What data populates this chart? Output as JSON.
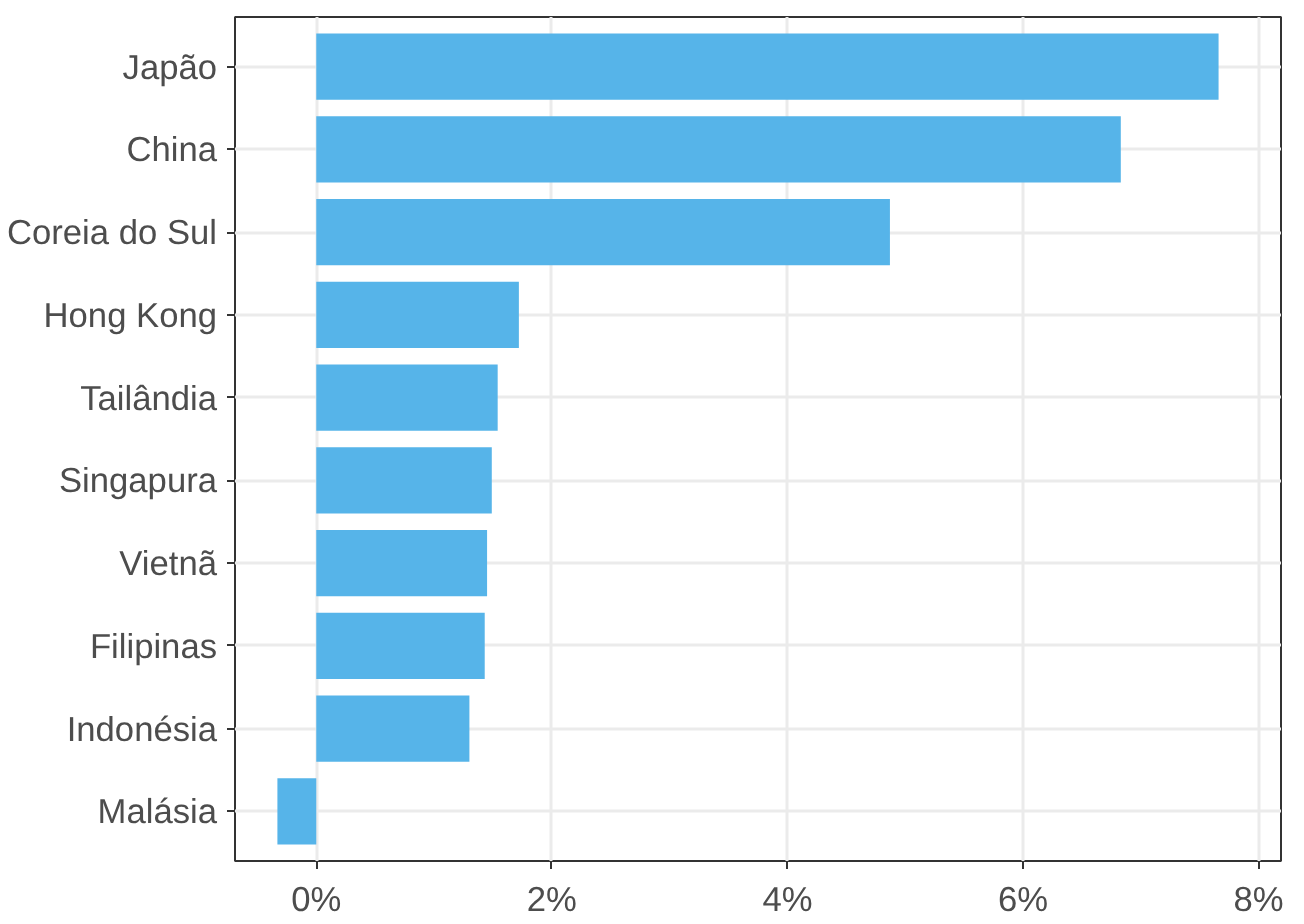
{
  "chart_data": {
    "type": "bar",
    "orientation": "horizontal",
    "categories": [
      "Japão",
      "China",
      "Coreia do Sul",
      "Hong Kong",
      "Tailândia",
      "Singapura",
      "Vietnã",
      "Filipinas",
      "Indonésia",
      "Malásia"
    ],
    "values": [
      7.66,
      6.83,
      4.87,
      1.72,
      1.54,
      1.49,
      1.45,
      1.43,
      1.3,
      -0.33
    ],
    "color": "#56b4e9",
    "xlim": [
      -0.69,
      8.19
    ],
    "xticks": [
      {
        "value": 0,
        "label": "0%"
      },
      {
        "value": 2,
        "label": "2%"
      },
      {
        "value": 4,
        "label": "4%"
      },
      {
        "value": 6,
        "label": "6%"
      },
      {
        "value": 8,
        "label": "8%"
      }
    ],
    "grid": true
  }
}
